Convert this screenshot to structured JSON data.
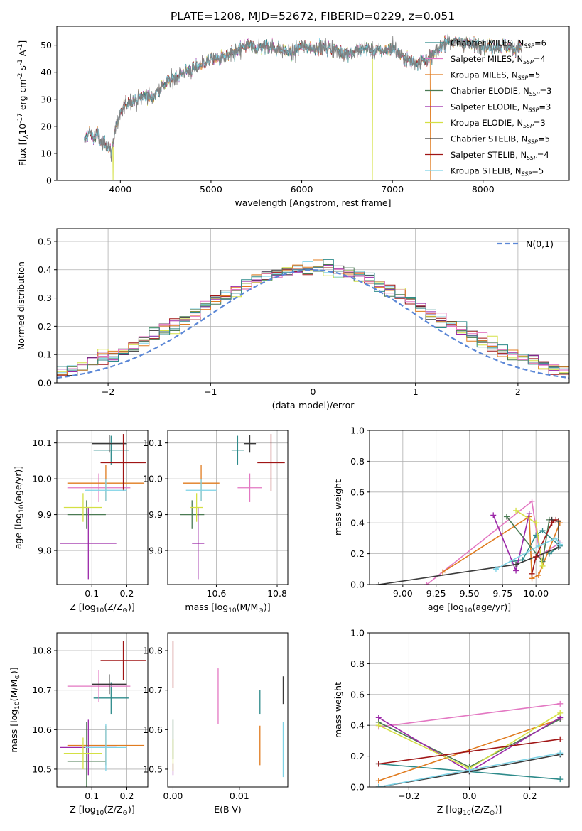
{
  "figure_title": "PLATE=1208, MJD=52672, FIBERID=0229, z=0.051",
  "model_legend": [
    {
      "label": "Chabrier MILES, N",
      "sub": "SSP",
      "suffix": "=6",
      "color": "#2e8b8b"
    },
    {
      "label": "Salpeter MILES, N",
      "sub": "SSP",
      "suffix": "=4",
      "color": "#e377c2"
    },
    {
      "label": "Kroupa MILES, N",
      "sub": "SSP",
      "suffix": "=5",
      "color": "#e07b1f"
    },
    {
      "label": "Chabrier ELODIE, N",
      "sub": "SSP",
      "suffix": "=3",
      "color": "#4a7a52"
    },
    {
      "label": "Salpeter ELODIE, N",
      "sub": "SSP",
      "suffix": "=3",
      "color": "#9b27a8"
    },
    {
      "label": "Kroupa ELODIE, N",
      "sub": "SSP",
      "suffix": "=3",
      "color": "#d4e043"
    },
    {
      "label": "Chabrier STELIB, N",
      "sub": "SSP",
      "suffix": "=5",
      "color": "#3a3a3a"
    },
    {
      "label": "Salpeter STELIB, N",
      "sub": "SSP",
      "suffix": "=4",
      "color": "#a01515"
    },
    {
      "label": "Kroupa STELIB, N",
      "sub": "SSP",
      "suffix": "=5",
      "color": "#7ed3e6"
    }
  ],
  "extra_colors": {
    "blue": "#5b87d6",
    "gray": "#808080",
    "grid": "#b0b0b0"
  },
  "chart_data": [
    {
      "id": "spectrum",
      "type": "line",
      "xlabel": "wavelength [Angstrom, rest frame]",
      "ylabel": "Flux [f$_\\lambda$10$^{-17}$ erg cm$^{-2}$ s$^{-1}$ A$^{-1}$]",
      "xlim": [
        3300,
        8950
      ],
      "ylim": [
        0,
        57
      ],
      "xticks": [
        4000,
        5000,
        6000,
        7000,
        8000
      ],
      "yticks": [
        0,
        10,
        20,
        30,
        40,
        50
      ],
      "grid": false,
      "legend": "upper right",
      "continuum": [
        [
          3600,
          14
        ],
        [
          3650,
          18
        ],
        [
          3700,
          16
        ],
        [
          3750,
          17
        ],
        [
          3800,
          13
        ],
        [
          3850,
          14
        ],
        [
          3900,
          10
        ],
        [
          3950,
          20
        ],
        [
          4000,
          24
        ],
        [
          4050,
          28
        ],
        [
          4100,
          29
        ],
        [
          4200,
          30
        ],
        [
          4300,
          32
        ],
        [
          4350,
          30
        ],
        [
          4400,
          33
        ],
        [
          4500,
          36
        ],
        [
          4600,
          38
        ],
        [
          4700,
          40
        ],
        [
          4800,
          41
        ],
        [
          4900,
          43
        ],
        [
          5000,
          45
        ],
        [
          5100,
          45
        ],
        [
          5200,
          46
        ],
        [
          5300,
          48
        ],
        [
          5400,
          50
        ],
        [
          5500,
          49
        ],
        [
          5600,
          50
        ],
        [
          5700,
          49
        ],
        [
          5800,
          48
        ],
        [
          5900,
          47
        ],
        [
          6000,
          50
        ],
        [
          6100,
          49
        ],
        [
          6200,
          49
        ],
        [
          6300,
          49
        ],
        [
          6400,
          48
        ],
        [
          6500,
          47
        ],
        [
          6600,
          48
        ],
        [
          6700,
          49
        ],
        [
          6800,
          48
        ],
        [
          6900,
          48
        ],
        [
          7000,
          49
        ],
        [
          7100,
          46
        ],
        [
          7200,
          44
        ],
        [
          7300,
          44
        ],
        [
          7400,
          45
        ],
        [
          7500,
          48
        ],
        [
          7600,
          52
        ],
        [
          7700,
          51
        ],
        [
          7800,
          51
        ],
        [
          7900,
          50
        ],
        [
          8000,
          50
        ],
        [
          8100,
          49
        ],
        [
          8200,
          50
        ],
        [
          8300,
          49
        ],
        [
          8400,
          49
        ]
      ],
      "dropouts": [
        {
          "x": 3920,
          "series": "Kroupa ELODIE"
        },
        {
          "x": 6780,
          "series": "Kroupa ELODIE"
        },
        {
          "x": 7420,
          "series": "Kroupa MILES"
        }
      ]
    },
    {
      "id": "residual-distribution",
      "type": "line",
      "xlabel": "(data-model)/error",
      "ylabel": "Normed distribution",
      "xlim": [
        -2.5,
        2.5
      ],
      "ylim": [
        0,
        0.545
      ],
      "xticks": [
        -2,
        -1,
        0,
        1,
        2
      ],
      "yticks": [
        0.0,
        0.1,
        0.2,
        0.3,
        0.4,
        0.5
      ],
      "grid": true,
      "reference_curve": "N(0,1)",
      "reference_label": "$\\mathcal{N}(0,1)$",
      "bin_width": 0.1
    },
    {
      "id": "age-vs-Z",
      "type": "scatter",
      "xlabel": "Z [log$_{10}$(Z/Z$_\\odot$)]",
      "ylabel": "age  [log$_{10}$(age/yr)]",
      "xlim": [
        0.0,
        0.26
      ],
      "ylim": [
        9.705,
        10.135
      ],
      "xticks": [
        0.1,
        0.2
      ],
      "yticks": [
        9.8,
        9.9,
        10.0,
        10.1
      ],
      "grid": true,
      "points": [
        {
          "series": "Chabrier MILES",
          "x": 0.155,
          "y": 10.08,
          "xerr": 0.05,
          "yerr": 0.04
        },
        {
          "series": "Salpeter MILES",
          "x": 0.12,
          "y": 9.975,
          "xerr": 0.09,
          "yerr": 0.04
        },
        {
          "series": "Kroupa MILES",
          "x": 0.14,
          "y": 9.988,
          "xerr": 0.11,
          "yerr": 0.05
        },
        {
          "series": "Chabrier ELODIE",
          "x": 0.085,
          "y": 9.9,
          "xerr": 0.055,
          "yerr": 0.04
        },
        {
          "series": "Salpeter ELODIE",
          "x": 0.09,
          "y": 9.82,
          "xerr": 0.08,
          "yerr": 0.1
        },
        {
          "series": "Kroupa ELODIE",
          "x": 0.075,
          "y": 9.92,
          "xerr": 0.055,
          "yerr": 0.04
        },
        {
          "series": "Chabrier STELIB",
          "x": 0.15,
          "y": 10.098,
          "xerr": 0.05,
          "yerr": 0.025
        },
        {
          "series": "Salpeter STELIB",
          "x": 0.19,
          "y": 10.045,
          "xerr": 0.065,
          "yerr": 0.08
        },
        {
          "series": "Kroupa STELIB",
          "x": 0.14,
          "y": 9.968,
          "xerr": 0.06,
          "yerr": 0.03
        }
      ]
    },
    {
      "id": "age-vs-mass",
      "type": "scatter",
      "xlabel": "mass [log$_{10}$(M/M$_\\odot$)]",
      "ylabel": "",
      "xlim": [
        10.44,
        10.835
      ],
      "ylim": [
        9.705,
        10.135
      ],
      "xticks": [
        10.6,
        10.8
      ],
      "yticks": [
        9.8,
        9.9,
        10.0,
        10.1
      ],
      "grid": true,
      "points": [
        {
          "series": "Chabrier MILES",
          "x": 10.67,
          "y": 10.08,
          "xerr": 0.02,
          "yerr": 0.04
        },
        {
          "series": "Salpeter MILES",
          "x": 10.71,
          "y": 9.975,
          "xerr": 0.04,
          "yerr": 0.04
        },
        {
          "series": "Kroupa MILES",
          "x": 10.55,
          "y": 9.988,
          "xerr": 0.06,
          "yerr": 0.05
        },
        {
          "series": "Chabrier ELODIE",
          "x": 10.52,
          "y": 9.9,
          "xerr": 0.04,
          "yerr": 0.04
        },
        {
          "series": "Salpeter ELODIE",
          "x": 10.54,
          "y": 9.82,
          "xerr": 0.02,
          "yerr": 0.1
        },
        {
          "series": "Kroupa ELODIE",
          "x": 10.535,
          "y": 9.92,
          "xerr": 0.02,
          "yerr": 0.04
        },
        {
          "series": "Chabrier STELIB",
          "x": 10.71,
          "y": 10.098,
          "xerr": 0.02,
          "yerr": 0.025
        },
        {
          "series": "Salpeter STELIB",
          "x": 10.78,
          "y": 10.045,
          "xerr": 0.045,
          "yerr": 0.08
        },
        {
          "series": "Kroupa STELIB",
          "x": 10.55,
          "y": 9.968,
          "xerr": 0.05,
          "yerr": 0.03
        }
      ]
    },
    {
      "id": "mass-weight-vs-age",
      "type": "line",
      "xlabel": "age  [log$_{10}$(age/yr)]",
      "ylabel": "mass weight",
      "xlim": [
        8.75,
        10.25
      ],
      "ylim": [
        0,
        1
      ],
      "xticks": [
        9.0,
        9.25,
        9.5,
        9.75,
        10.0
      ],
      "xticklabels": [
        "9.00",
        "9.25",
        "9.50",
        "9.75",
        "10.00"
      ],
      "yticks": [
        0.0,
        0.2,
        0.4,
        0.6,
        0.8,
        1.0
      ],
      "grid": true,
      "series": [
        {
          "name": "Chabrier MILES",
          "points": [
            [
              9.82,
              0.15
            ],
            [
              9.9,
              0.16
            ],
            [
              10.0,
              0.32
            ],
            [
              10.05,
              0.35
            ],
            [
              10.18,
              0.25
            ],
            [
              10.1,
              0.2
            ]
          ]
        },
        {
          "name": "Salpeter MILES",
          "points": [
            [
              9.18,
              0.0
            ],
            [
              9.97,
              0.54
            ],
            [
              10.03,
              0.19
            ],
            [
              10.18,
              0.27
            ]
          ]
        },
        {
          "name": "Kroupa MILES",
          "points": [
            [
              9.3,
              0.08
            ],
            [
              9.95,
              0.44
            ],
            [
              9.97,
              0.04
            ],
            [
              10.02,
              0.06
            ],
            [
              10.18,
              0.4
            ]
          ]
        },
        {
          "name": "Chabrier ELODIE",
          "points": [
            [
              9.78,
              0.44
            ],
            [
              10.05,
              0.15
            ],
            [
              10.1,
              0.42
            ]
          ]
        },
        {
          "name": "Salpeter ELODIE",
          "points": [
            [
              9.68,
              0.45
            ],
            [
              9.85,
              0.09
            ],
            [
              9.95,
              0.46
            ]
          ]
        },
        {
          "name": "Kroupa ELODIE",
          "points": [
            [
              9.85,
              0.48
            ],
            [
              10.0,
              0.4
            ],
            [
              10.05,
              0.12
            ]
          ]
        },
        {
          "name": "Chabrier STELIB",
          "points": [
            [
              8.82,
              0.0
            ],
            [
              9.85,
              0.13
            ],
            [
              10.17,
              0.24
            ],
            [
              10.17,
              0.41
            ],
            [
              10.12,
              0.42
            ]
          ]
        },
        {
          "name": "Salpeter STELIB",
          "points": [
            [
              9.97,
              0.07
            ],
            [
              10.0,
              0.18
            ],
            [
              10.12,
              0.4
            ],
            [
              10.15,
              0.42
            ]
          ]
        },
        {
          "name": "Kroupa STELIB",
          "points": [
            [
              9.7,
              0.1
            ],
            [
              10.02,
              0.25
            ],
            [
              10.15,
              0.3
            ],
            [
              10.18,
              0.26
            ]
          ]
        }
      ]
    },
    {
      "id": "mass-vs-Z",
      "type": "scatter",
      "xlabel": "Z [log$_{10}$(Z/Z$_\\odot$)]",
      "ylabel": "mass [log$_{10}$(M/M$_\\odot$)]",
      "xlim": [
        0.0,
        0.26
      ],
      "ylim": [
        10.455,
        10.845
      ],
      "xticks": [
        0.1,
        0.2
      ],
      "yticks": [
        10.5,
        10.6,
        10.7,
        10.8
      ],
      "grid": true,
      "points": [
        {
          "series": "Chabrier MILES",
          "x": 0.155,
          "y": 10.68,
          "xerr": 0.05,
          "yerr": 0.04
        },
        {
          "series": "Salpeter MILES",
          "x": 0.12,
          "y": 10.71,
          "xerr": 0.09,
          "yerr": 0.04
        },
        {
          "series": "Kroupa MILES",
          "x": 0.14,
          "y": 10.56,
          "xerr": 0.11,
          "yerr": 0.05
        },
        {
          "series": "Chabrier ELODIE",
          "x": 0.085,
          "y": 10.52,
          "xerr": 0.055,
          "yerr": 0.1
        },
        {
          "series": "Salpeter ELODIE",
          "x": 0.09,
          "y": 10.555,
          "xerr": 0.08,
          "yerr": 0.07
        },
        {
          "series": "Kroupa ELODIE",
          "x": 0.075,
          "y": 10.54,
          "xerr": 0.055,
          "yerr": 0.04
        },
        {
          "series": "Chabrier STELIB",
          "x": 0.15,
          "y": 10.715,
          "xerr": 0.05,
          "yerr": 0.025
        },
        {
          "series": "Salpeter STELIB",
          "x": 0.19,
          "y": 10.775,
          "xerr": 0.065,
          "yerr": 0.05
        },
        {
          "series": "Kroupa STELIB",
          "x": 0.14,
          "y": 10.555,
          "xerr": 0.06,
          "yerr": 0.06
        }
      ]
    },
    {
      "id": "mass-vs-EBV",
      "type": "scatter",
      "xlabel": "E(B-V)",
      "ylabel": "",
      "xlim": [
        -0.0008,
        0.0173
      ],
      "ylim": [
        10.455,
        10.845
      ],
      "xticks": [
        0.0,
        0.01
      ],
      "xticklabels": [
        "0.00",
        "0.01"
      ],
      "yticks": [
        10.5,
        10.6,
        10.7,
        10.8
      ],
      "grid": false,
      "points": [
        {
          "series": "Chabrier MILES",
          "x": 0.0131,
          "y": 10.67,
          "yerr": 0.03
        },
        {
          "series": "Salpeter MILES",
          "x": 0.0068,
          "y": 10.685,
          "yerr": 0.07
        },
        {
          "series": "Kroupa MILES",
          "x": 0.0131,
          "y": 10.56,
          "yerr": 0.05
        },
        {
          "series": "Chabrier ELODIE",
          "x": 0.0,
          "y": 10.575,
          "yerr": 0.05
        },
        {
          "series": "Salpeter ELODIE",
          "x": 0.0,
          "y": 10.5,
          "yerr": 0.015
        },
        {
          "series": "Kroupa ELODIE",
          "x": 0.0,
          "y": 10.535,
          "yerr": 0.04
        },
        {
          "series": "Chabrier STELIB",
          "x": 0.0166,
          "y": 10.7,
          "yerr": 0.035
        },
        {
          "series": "Salpeter STELIB",
          "x": 0.0,
          "y": 10.765,
          "yerr": 0.06
        },
        {
          "series": "Kroupa STELIB",
          "x": 0.0166,
          "y": 10.55,
          "yerr": 0.07
        }
      ]
    },
    {
      "id": "mass-weight-vs-Z",
      "type": "line",
      "xlabel": "Z [log$_{10}$(Z/Z$_\\odot$)]",
      "ylabel": "mass weight",
      "xlim": [
        -0.33,
        0.33
      ],
      "ylim": [
        0,
        1
      ],
      "xticks": [
        -0.2,
        0.0,
        0.2
      ],
      "xticklabels": [
        "−0.2",
        "0.0",
        "0.2"
      ],
      "yticks": [
        0.0,
        0.2,
        0.4,
        0.6,
        0.8,
        1.0
      ],
      "grid": true,
      "series": [
        {
          "name": "Chabrier MILES",
          "points": [
            [
              -0.3,
              0.15
            ],
            [
              0.0,
              0.1
            ],
            [
              0.3,
              0.05
            ]
          ]
        },
        {
          "name": "Salpeter MILES",
          "points": [
            [
              -0.3,
              0.39
            ],
            [
              0.3,
              0.54
            ]
          ]
        },
        {
          "name": "Kroupa MILES",
          "points": [
            [
              -0.3,
              0.04
            ],
            [
              0.3,
              0.44
            ]
          ]
        },
        {
          "name": "Chabrier ELODIE",
          "points": [
            [
              -0.3,
              0.42
            ],
            [
              0.0,
              0.13
            ],
            [
              0.3,
              0.44
            ]
          ]
        },
        {
          "name": "Salpeter ELODIE",
          "points": [
            [
              -0.3,
              0.45
            ],
            [
              0.0,
              0.1
            ],
            [
              0.3,
              0.45
            ]
          ]
        },
        {
          "name": "Kroupa ELODIE",
          "points": [
            [
              -0.3,
              0.4
            ],
            [
              0.0,
              0.12
            ],
            [
              0.3,
              0.48
            ]
          ]
        },
        {
          "name": "Chabrier STELIB",
          "points": [
            [
              -0.3,
              0.0
            ],
            [
              0.0,
              0.1
            ],
            [
              0.3,
              0.21
            ]
          ]
        },
        {
          "name": "Salpeter STELIB",
          "points": [
            [
              -0.3,
              0.15
            ],
            [
              0.0,
              0.23
            ],
            [
              0.3,
              0.31
            ]
          ]
        },
        {
          "name": "Kroupa STELIB",
          "points": [
            [
              -0.3,
              0.0
            ],
            [
              0.0,
              0.11
            ],
            [
              0.3,
              0.22
            ]
          ]
        }
      ]
    }
  ]
}
